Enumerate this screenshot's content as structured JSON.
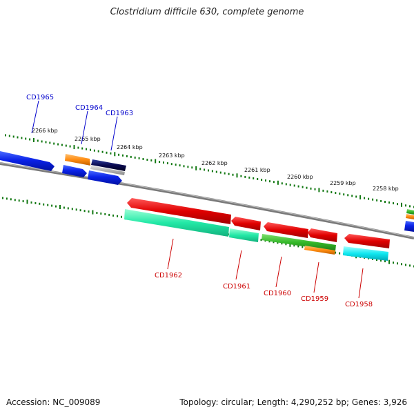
{
  "title": "Clostridium difficile 630, complete genome",
  "footer": {
    "accession": "Accession: NC_009089",
    "stats": "Topology: circular; Length: 4,290,252 bp; Genes: 3,926"
  },
  "colors": {
    "forward_label": "#0000cc",
    "reverse_label": "#cc0000",
    "tick": "#117711",
    "backbone": "#7a7a7a"
  },
  "scale": {
    "labels": [
      "2266 kbp",
      "2265 kbp",
      "2264 kbp",
      "2263 kbp",
      "2262 kbp",
      "2261 kbp",
      "2260 kbp",
      "2259 kbp",
      "2258 kbp"
    ]
  },
  "genes": {
    "forward": [
      "CD1965",
      "CD1964",
      "CD1963"
    ],
    "reverse": [
      "CD1962",
      "CD1961",
      "CD1960",
      "CD1959",
      "CD1958"
    ]
  }
}
